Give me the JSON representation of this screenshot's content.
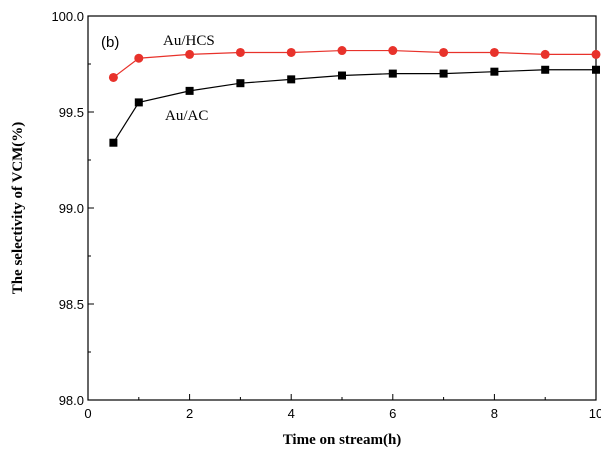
{
  "chart_data": {
    "type": "line",
    "panel_label": "(b)",
    "xlabel": "Time on stream(h)",
    "ylabel": "The selectivity of VCM(%)",
    "xlim": [
      0,
      10
    ],
    "ylim": [
      98.0,
      100.0
    ],
    "x_ticks": [
      "0",
      "2",
      "4",
      "6",
      "8",
      "10"
    ],
    "y_ticks": [
      "98.0",
      "98.5",
      "99.0",
      "99.5",
      "100.0"
    ],
    "legend": "none",
    "grid": false,
    "series": [
      {
        "name": "Au/HCS",
        "color": "#e8322b",
        "marker": "circle",
        "x": [
          0.5,
          1,
          2,
          3,
          4,
          5,
          6,
          7,
          8,
          9,
          10
        ],
        "values": [
          99.68,
          99.78,
          99.8,
          99.81,
          99.81,
          99.82,
          99.82,
          99.81,
          99.81,
          99.8,
          99.8
        ]
      },
      {
        "name": "Au/AC",
        "color": "#000000",
        "marker": "square",
        "x": [
          0.5,
          1,
          2,
          3,
          4,
          5,
          6,
          7,
          8,
          9,
          10
        ],
        "values": [
          99.34,
          99.55,
          99.61,
          99.65,
          99.67,
          99.69,
          99.7,
          99.7,
          99.71,
          99.72,
          99.72
        ]
      }
    ]
  }
}
